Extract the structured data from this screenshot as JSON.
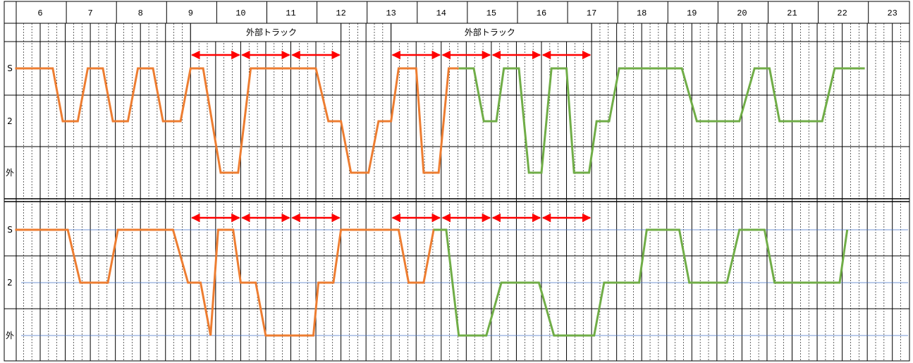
{
  "chart_data": [
    {
      "type": "line",
      "hours": [
        "6",
        "7",
        "8",
        "9",
        "10",
        "11",
        "12",
        "13",
        "14",
        "15",
        "16",
        "17",
        "18",
        "19",
        "20",
        "21",
        "22",
        "23"
      ],
      "y_categories": [
        "S",
        "2",
        "外"
      ],
      "annotations": [
        {
          "text": "外部トラック",
          "start_hour": 9,
          "end_hour": 12
        },
        {
          "text": "外部トラック",
          "start_hour": 13,
          "end_hour": 17
        }
      ],
      "arrow_segments": [
        [
          9,
          10
        ],
        [
          10,
          11
        ],
        [
          11,
          12
        ],
        [
          13,
          14
        ],
        [
          14,
          15
        ],
        [
          15,
          16
        ],
        [
          16,
          17
        ]
      ],
      "series": [
        {
          "color": "#ED7D31",
          "points": [
            [
              5.5,
              0
            ],
            [
              6.25,
              0
            ],
            [
              6.45,
              1
            ],
            [
              6.75,
              1
            ],
            [
              6.95,
              0
            ],
            [
              7.25,
              0
            ],
            [
              7.45,
              1
            ],
            [
              7.75,
              1
            ],
            [
              7.95,
              0
            ],
            [
              8.25,
              0
            ],
            [
              8.45,
              1
            ],
            [
              8.8,
              1
            ],
            [
              9,
              0
            ],
            [
              9.25,
              0
            ],
            [
              9.6,
              2
            ],
            [
              9.95,
              2
            ],
            [
              10.2,
              0
            ],
            [
              11.5,
              0
            ],
            [
              11.75,
              1
            ],
            [
              12,
              1
            ],
            [
              12.2,
              2
            ],
            [
              12.55,
              2
            ],
            [
              12.75,
              1
            ],
            [
              13.0,
              1
            ],
            [
              13.15,
              0
            ],
            [
              13.5,
              0
            ],
            [
              13.65,
              2
            ],
            [
              13.95,
              2
            ],
            [
              14.15,
              0
            ],
            [
              14.35,
              0
            ]
          ]
        },
        {
          "color": "#70AD47",
          "points": [
            [
              14.35,
              0
            ],
            [
              14.65,
              0
            ],
            [
              14.85,
              1
            ],
            [
              15.1,
              1
            ],
            [
              15.25,
              0
            ],
            [
              15.55,
              0
            ],
            [
              15.75,
              2
            ],
            [
              16.0,
              2
            ],
            [
              16.2,
              0
            ],
            [
              16.5,
              0
            ],
            [
              16.65,
              2
            ],
            [
              16.95,
              2
            ],
            [
              17.1,
              1
            ],
            [
              17.35,
              1
            ],
            [
              17.55,
              0
            ],
            [
              18.8,
              0
            ],
            [
              19.1,
              1
            ],
            [
              19.95,
              1
            ],
            [
              20.25,
              0
            ],
            [
              20.55,
              0
            ],
            [
              20.75,
              1
            ],
            [
              21.6,
              1
            ],
            [
              21.85,
              0
            ],
            [
              22.45,
              0
            ]
          ]
        }
      ]
    },
    {
      "type": "line",
      "hours": [
        "6",
        "7",
        "8",
        "9",
        "10",
        "11",
        "12",
        "13",
        "14",
        "15",
        "16",
        "17",
        "18",
        "19",
        "20",
        "21",
        "22",
        "23"
      ],
      "y_categories": [
        "S",
        "2",
        "外"
      ],
      "arrow_segments": [
        [
          9,
          10
        ],
        [
          10,
          11
        ],
        [
          11,
          12
        ],
        [
          13,
          14
        ],
        [
          14,
          15
        ],
        [
          15,
          16
        ],
        [
          16,
          17
        ]
      ],
      "series": [
        {
          "color": "#ED7D31",
          "points": [
            [
              5.5,
              0
            ],
            [
              6.55,
              0
            ],
            [
              6.8,
              1
            ],
            [
              7.35,
              1
            ],
            [
              7.55,
              0
            ],
            [
              8.65,
              0
            ],
            [
              8.95,
              1
            ],
            [
              9.2,
              1
            ],
            [
              9.4,
              2
            ],
            [
              9.55,
              0
            ],
            [
              9.85,
              0
            ],
            [
              10.0,
              1
            ],
            [
              10.3,
              1
            ],
            [
              10.5,
              2
            ],
            [
              11.45,
              2
            ],
            [
              11.55,
              1
            ],
            [
              11.85,
              1
            ],
            [
              12.0,
              0
            ],
            [
              13.15,
              0
            ],
            [
              13.35,
              1
            ],
            [
              13.65,
              1
            ],
            [
              13.85,
              0
            ],
            [
              14.0,
              0
            ]
          ]
        },
        {
          "color": "#70AD47",
          "points": [
            [
              13.85,
              0
            ],
            [
              14.1,
              0
            ],
            [
              14.35,
              2
            ],
            [
              14.9,
              2
            ],
            [
              15.2,
              1
            ],
            [
              15.95,
              1
            ],
            [
              16.25,
              2
            ],
            [
              17.05,
              2
            ],
            [
              17.25,
              1
            ],
            [
              17.95,
              1
            ],
            [
              18.1,
              0
            ],
            [
              18.75,
              0
            ],
            [
              18.95,
              1
            ],
            [
              19.7,
              1
            ],
            [
              19.95,
              0
            ],
            [
              20.45,
              0
            ],
            [
              20.65,
              1
            ],
            [
              21.95,
              1
            ],
            [
              22.1,
              0
            ]
          ]
        }
      ]
    }
  ]
}
